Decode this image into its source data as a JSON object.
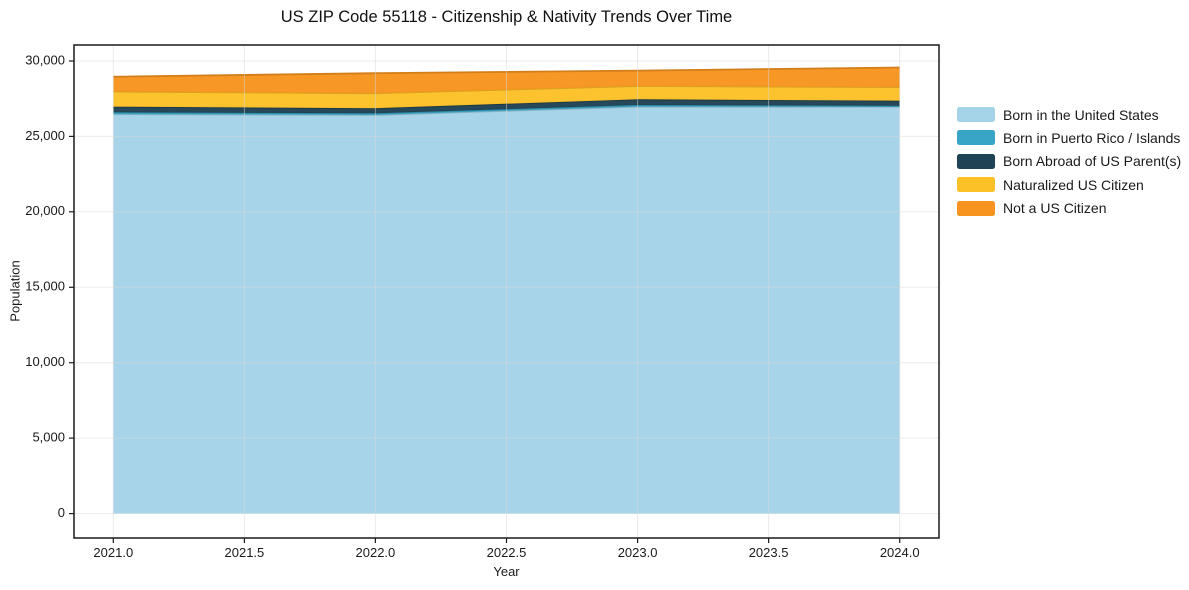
{
  "chart_data": {
    "type": "area",
    "stacked": true,
    "title": "US ZIP Code 55118 - Citizenship & Nativity Trends Over Time",
    "xlabel": "Year",
    "ylabel": "Population",
    "x": [
      2021,
      2022,
      2023,
      2024
    ],
    "series": [
      {
        "name": "Born in the United States",
        "color": "#A5D3E8",
        "values": [
          26470,
          26420,
          26970,
          26960
        ]
      },
      {
        "name": "Born in Puerto Rico / Islands",
        "color": "#39A5C6",
        "values": [
          130,
          110,
          110,
          70
        ]
      },
      {
        "name": "Born Abroad of US Parent(s)",
        "color": "#1F4254",
        "values": [
          370,
          340,
          380,
          340
        ]
      },
      {
        "name": "Naturalized US Citizen",
        "color": "#FDC128",
        "values": [
          1000,
          990,
          880,
          890
        ]
      },
      {
        "name": "Not a US Citizen",
        "color": "#F7941F",
        "values": [
          990,
          1330,
          1020,
          1310
        ]
      }
    ],
    "xticks": {
      "values": [
        2021.0,
        2021.5,
        2022.0,
        2022.5,
        2023.0,
        2023.5,
        2024.0
      ],
      "labels": [
        "2021.0",
        "2021.5",
        "2022.0",
        "2022.5",
        "2023.0",
        "2023.5",
        "2024.0"
      ]
    },
    "yticks": {
      "values": [
        0,
        5000,
        10000,
        15000,
        20000,
        25000,
        30000
      ],
      "labels": [
        "0",
        "5,000",
        "10,000",
        "15,000",
        "20,000",
        "25,000",
        "30,000"
      ]
    },
    "xlim": [
      2020.85,
      2024.15
    ],
    "ylim": [
      -1620,
      31060
    ],
    "grid": true,
    "legend_position": "right",
    "colors": {
      "spine": "#1a1a1a",
      "grid": "#d8d8d8",
      "tick_label": "#1a1a1a",
      "background": "#ffffff"
    }
  }
}
